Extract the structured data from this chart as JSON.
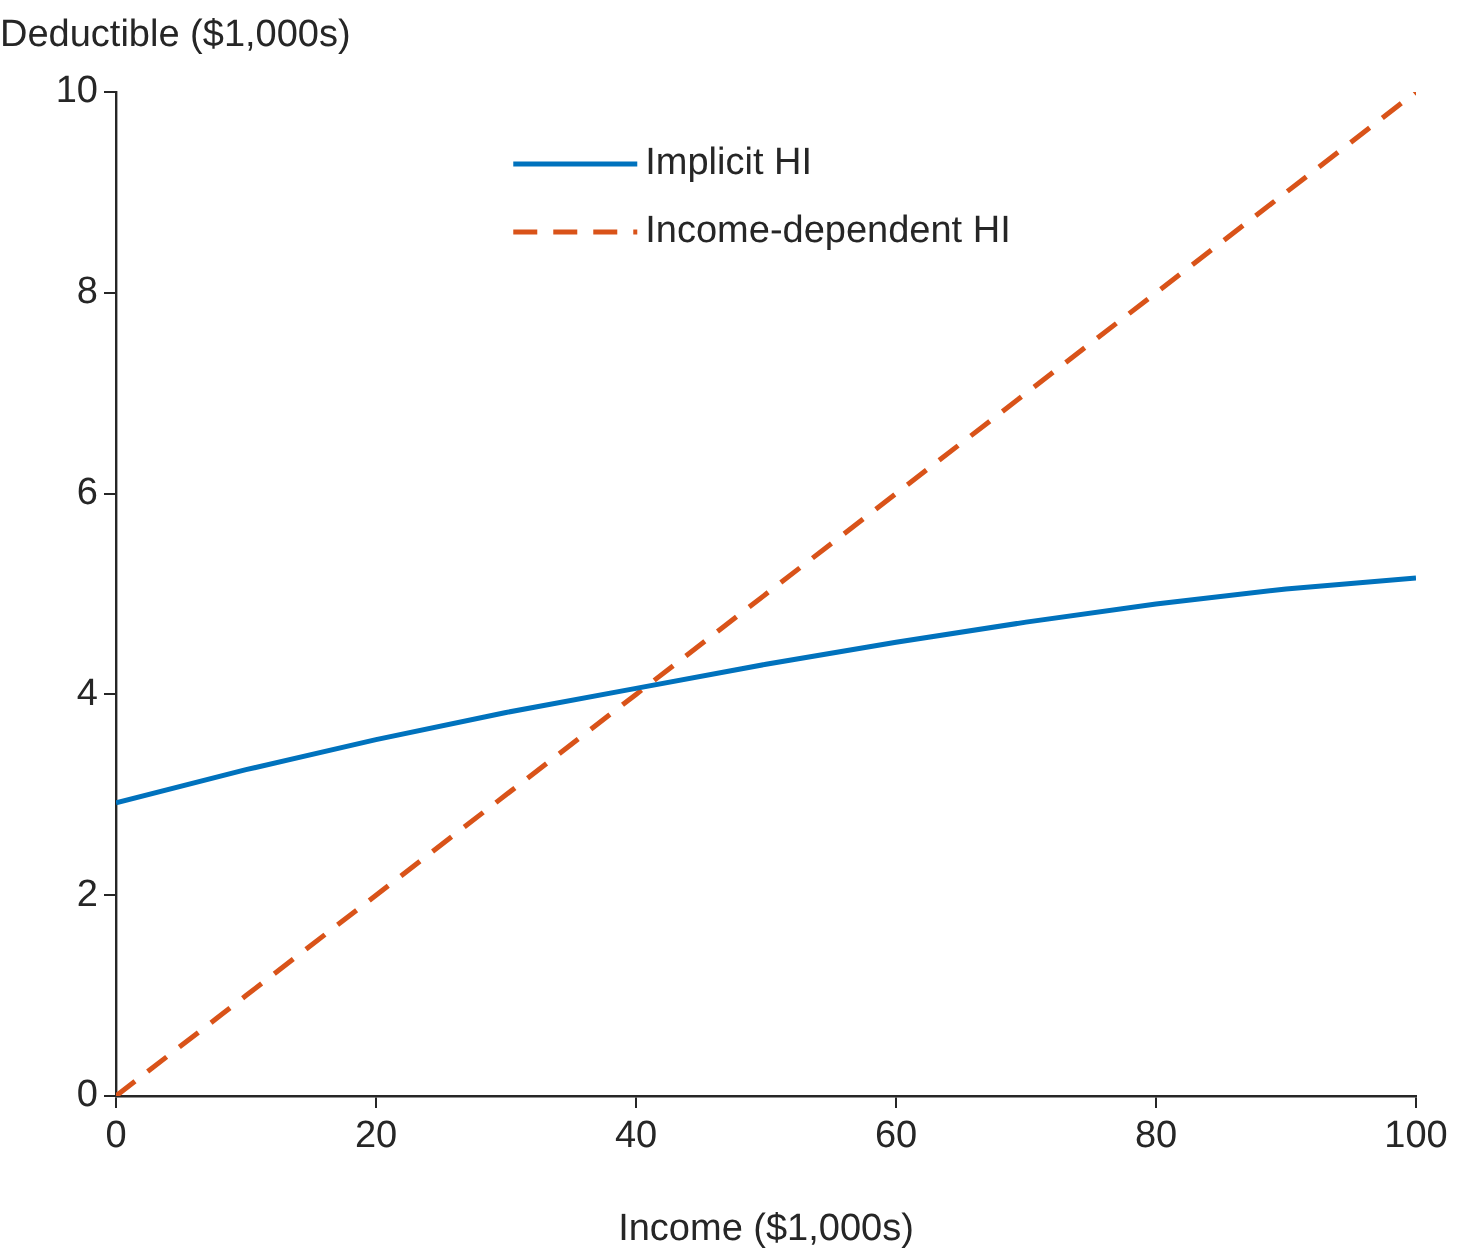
{
  "chart_data": {
    "type": "line",
    "xlabel": "Income ($1,000s)",
    "ylabel": "Deductible ($1,000s)",
    "x": [
      0,
      10,
      20,
      30,
      40,
      50,
      60,
      70,
      80,
      90,
      100
    ],
    "series": [
      {
        "name": "Implicit HI",
        "color": "#0072bd",
        "line_style": "solid",
        "values": [
          2.92,
          3.25,
          3.55,
          3.82,
          4.06,
          4.3,
          4.52,
          4.72,
          4.9,
          5.05,
          5.16
        ]
      },
      {
        "name": "Income-dependent HI",
        "color": "#d95319",
        "line_style": "dashed",
        "values": [
          0,
          1,
          2,
          3,
          4,
          5,
          6,
          7,
          8,
          9,
          10
        ]
      }
    ],
    "xlim": [
      0,
      100
    ],
    "xticks": [
      0,
      20,
      40,
      60,
      80,
      100
    ],
    "ylim": [
      0,
      10
    ],
    "yticks": [
      0,
      2,
      4,
      6,
      8,
      10
    ],
    "grid": false,
    "legend": "top",
    "marker": "none"
  }
}
